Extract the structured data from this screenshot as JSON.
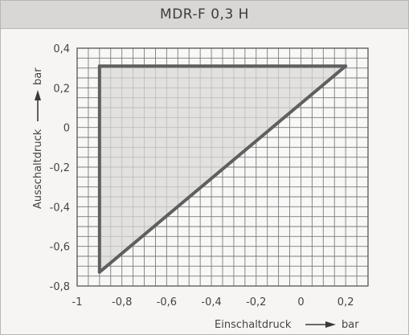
{
  "header": {
    "title": "MDR-F 0,3 H"
  },
  "chart_data": {
    "type": "area",
    "title": "MDR-F 0,3 H",
    "xlabel": "Einschaltdruck",
    "xunit": "bar",
    "ylabel": "Ausschaltdruck",
    "yunit": "bar",
    "xlim": [
      -1,
      0.3
    ],
    "ylim": [
      -0.8,
      0.4
    ],
    "xticks": [
      -1,
      -0.8,
      -0.6,
      -0.4,
      -0.2,
      0,
      0.2
    ],
    "xtick_labels": [
      "-1",
      "-0,8",
      "-0,6",
      "-0,4",
      "-0,2",
      "0",
      "0,2"
    ],
    "yticks": [
      -0.8,
      -0.6,
      -0.4,
      -0.2,
      0,
      0.2,
      0.4
    ],
    "ytick_labels": [
      "-0,8",
      "-0,6",
      "-0,4",
      "-0,2",
      "0",
      "0,2",
      "0,4"
    ],
    "grid": true,
    "region_vertices": [
      [
        -0.9,
        -0.73
      ],
      [
        -0.9,
        0.31
      ],
      [
        0.2,
        0.31
      ]
    ],
    "colors": {
      "region_fill": "#d9d8d6",
      "outline": "#5f5f5f",
      "grid": "#7b7b7b"
    }
  }
}
